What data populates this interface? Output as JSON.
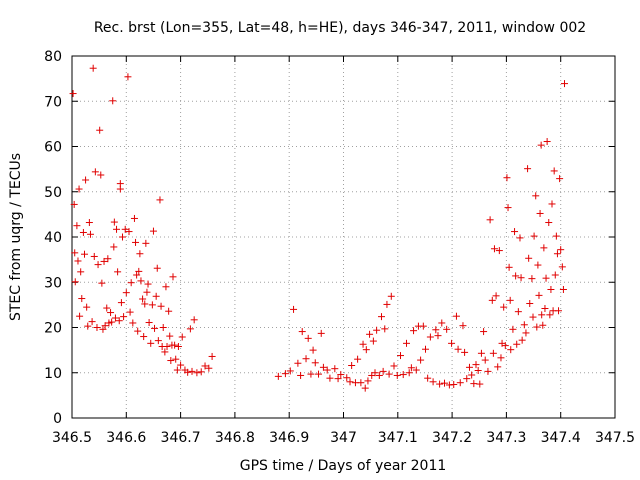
{
  "chart_data": {
    "type": "scatter",
    "title": "Rec. brst (Lon=355, Lat=48, h=HE), days 346-347, 2011, window 002",
    "xlabel": "GPS time / Days of year 2011",
    "ylabel": "STEC from uqrg / TECUs",
    "xlim": [
      346.5,
      347.5
    ],
    "ylim": [
      0,
      80
    ],
    "xticks": [
      346.5,
      346.6,
      346.7,
      346.8,
      346.9,
      347.0,
      347.1,
      347.2,
      347.3,
      347.4,
      347.5
    ],
    "xtick_labels": [
      "346.5",
      "346.6",
      "346.7",
      "346.8",
      "346.9",
      "347",
      "347.1",
      "347.2",
      "347.3",
      "347.4",
      "347.5"
    ],
    "yticks": [
      0,
      10,
      20,
      30,
      40,
      50,
      60,
      70,
      80
    ],
    "ytick_labels": [
      "0",
      "10",
      "20",
      "30",
      "40",
      "50",
      "60",
      "70",
      "80"
    ],
    "grid": true,
    "marker": "+",
    "color": "#e00000",
    "points": [
      [
        346.502,
        71.7
      ],
      [
        346.504,
        47.2
      ],
      [
        346.505,
        36.5
      ],
      [
        346.506,
        30.1
      ],
      [
        346.509,
        42.5
      ],
      [
        346.511,
        34.7
      ],
      [
        346.513,
        50.6
      ],
      [
        346.514,
        22.5
      ],
      [
        346.516,
        32.3
      ],
      [
        346.518,
        26.4
      ],
      [
        346.521,
        41.0
      ],
      [
        346.523,
        36.2
      ],
      [
        346.525,
        52.6
      ],
      [
        346.527,
        24.5
      ],
      [
        346.529,
        20.3
      ],
      [
        346.532,
        43.2
      ],
      [
        346.534,
        40.6
      ],
      [
        346.537,
        21.3
      ],
      [
        346.539,
        77.3
      ],
      [
        346.541,
        35.7
      ],
      [
        346.543,
        54.4
      ],
      [
        346.546,
        20.0
      ],
      [
        346.548,
        33.9
      ],
      [
        346.551,
        63.6
      ],
      [
        346.553,
        53.7
      ],
      [
        346.555,
        29.8
      ],
      [
        346.557,
        19.6
      ],
      [
        346.559,
        34.6
      ],
      [
        346.561,
        20.4
      ],
      [
        346.564,
        24.3
      ],
      [
        346.566,
        35.2
      ],
      [
        346.568,
        21.0
      ],
      [
        346.571,
        23.3
      ],
      [
        346.573,
        21.2
      ],
      [
        346.575,
        70.1
      ],
      [
        346.577,
        37.8
      ],
      [
        346.578,
        43.3
      ],
      [
        346.58,
        22.1
      ],
      [
        346.582,
        41.7
      ],
      [
        346.584,
        32.3
      ],
      [
        346.587,
        21.5
      ],
      [
        346.589,
        50.6
      ],
      [
        346.589,
        51.8
      ],
      [
        346.591,
        25.5
      ],
      [
        346.593,
        40.0
      ],
      [
        346.595,
        22.4
      ],
      [
        346.598,
        41.7
      ],
      [
        346.6,
        27.7
      ],
      [
        346.603,
        75.4
      ],
      [
        346.605,
        41.2
      ],
      [
        346.607,
        23.4
      ],
      [
        346.609,
        29.9
      ],
      [
        346.612,
        21.0
      ],
      [
        346.615,
        44.1
      ],
      [
        346.617,
        38.8
      ],
      [
        346.619,
        31.6
      ],
      [
        346.621,
        19.2
      ],
      [
        346.623,
        32.4
      ],
      [
        346.625,
        36.3
      ],
      [
        346.627,
        30.3
      ],
      [
        346.63,
        26.3
      ],
      [
        346.632,
        18.0
      ],
      [
        346.634,
        25.2
      ],
      [
        346.636,
        38.6
      ],
      [
        346.638,
        27.8
      ],
      [
        346.64,
        29.6
      ],
      [
        346.642,
        21.1
      ],
      [
        346.645,
        16.5
      ],
      [
        346.648,
        25.0
      ],
      [
        346.65,
        41.3
      ],
      [
        346.652,
        19.8
      ],
      [
        346.655,
        26.9
      ],
      [
        346.657,
        33.1
      ],
      [
        346.659,
        17.1
      ],
      [
        346.662,
        48.2
      ],
      [
        346.664,
        24.7
      ],
      [
        346.666,
        15.8
      ],
      [
        346.668,
        20.0
      ],
      [
        346.671,
        14.6
      ],
      [
        346.673,
        29.0
      ],
      [
        346.675,
        15.8
      ],
      [
        346.678,
        23.6
      ],
      [
        346.68,
        18.1
      ],
      [
        346.682,
        12.7
      ],
      [
        346.684,
        16.1
      ],
      [
        346.686,
        31.2
      ],
      [
        346.689,
        16.1
      ],
      [
        346.691,
        13.0
      ],
      [
        346.694,
        10.6
      ],
      [
        346.696,
        15.8
      ],
      [
        346.7,
        11.7
      ],
      [
        346.703,
        17.9
      ],
      [
        346.708,
        10.6
      ],
      [
        346.713,
        10.1
      ],
      [
        346.718,
        19.7
      ],
      [
        346.721,
        10.3
      ],
      [
        346.725,
        21.7
      ],
      [
        346.73,
        10.0
      ],
      [
        346.738,
        10.2
      ],
      [
        346.745,
        11.5
      ],
      [
        346.752,
        11.0
      ],
      [
        346.758,
        13.6
      ],
      [
        346.88,
        9.2
      ],
      [
        346.893,
        9.8
      ],
      [
        346.902,
        10.4
      ],
      [
        346.908,
        24.0
      ],
      [
        346.916,
        12.1
      ],
      [
        346.921,
        9.4
      ],
      [
        346.924,
        19.1
      ],
      [
        346.931,
        13.1
      ],
      [
        346.935,
        17.6
      ],
      [
        346.94,
        9.7
      ],
      [
        346.944,
        15.0
      ],
      [
        346.948,
        12.2
      ],
      [
        346.954,
        9.7
      ],
      [
        346.959,
        18.7
      ],
      [
        346.963,
        11.2
      ],
      [
        346.97,
        10.6
      ],
      [
        346.975,
        8.8
      ],
      [
        346.984,
        10.9
      ],
      [
        346.99,
        8.7
      ],
      [
        346.995,
        9.6
      ],
      [
        347.006,
        8.9
      ],
      [
        347.012,
        8.0
      ],
      [
        347.015,
        11.6
      ],
      [
        347.022,
        7.8
      ],
      [
        347.026,
        13.0
      ],
      [
        347.032,
        7.8
      ],
      [
        347.036,
        16.3
      ],
      [
        347.04,
        6.6
      ],
      [
        347.042,
        15.1
      ],
      [
        347.045,
        8.2
      ],
      [
        347.048,
        18.5
      ],
      [
        347.052,
        9.4
      ],
      [
        347.055,
        17.0
      ],
      [
        347.058,
        10.0
      ],
      [
        347.061,
        19.4
      ],
      [
        347.066,
        9.4
      ],
      [
        347.07,
        22.4
      ],
      [
        347.073,
        10.3
      ],
      [
        347.076,
        19.7
      ],
      [
        347.08,
        25.1
      ],
      [
        347.084,
        9.7
      ],
      [
        347.088,
        26.9
      ],
      [
        347.093,
        11.5
      ],
      [
        347.099,
        9.4
      ],
      [
        347.105,
        13.8
      ],
      [
        347.11,
        9.6
      ],
      [
        347.116,
        16.5
      ],
      [
        347.121,
        10.0
      ],
      [
        347.125,
        11.1
      ],
      [
        347.129,
        19.3
      ],
      [
        347.134,
        10.6
      ],
      [
        347.138,
        20.3
      ],
      [
        347.142,
        12.8
      ],
      [
        347.147,
        20.3
      ],
      [
        347.151,
        15.2
      ],
      [
        347.155,
        8.8
      ],
      [
        347.16,
        17.9
      ],
      [
        347.165,
        8.0
      ],
      [
        347.17,
        19.5
      ],
      [
        347.174,
        18.2
      ],
      [
        347.177,
        7.5
      ],
      [
        347.181,
        21.0
      ],
      [
        347.186,
        7.7
      ],
      [
        347.19,
        19.6
      ],
      [
        347.195,
        7.3
      ],
      [
        347.199,
        16.5
      ],
      [
        347.203,
        7.4
      ],
      [
        347.208,
        22.5
      ],
      [
        347.211,
        15.2
      ],
      [
        347.215,
        7.8
      ],
      [
        347.22,
        20.4
      ],
      [
        347.223,
        14.5
      ],
      [
        347.227,
        8.7
      ],
      [
        347.232,
        11.2
      ],
      [
        347.236,
        9.5
      ],
      [
        347.24,
        7.6
      ],
      [
        347.244,
        11.8
      ],
      [
        347.248,
        10.5
      ],
      [
        347.251,
        7.5
      ],
      [
        347.254,
        14.3
      ],
      [
        347.258,
        19.1
      ],
      [
        347.261,
        12.8
      ],
      [
        347.266,
        10.3
      ],
      [
        347.27,
        43.8
      ],
      [
        347.274,
        26.0
      ],
      [
        347.276,
        14.3
      ],
      [
        347.278,
        37.4
      ],
      [
        347.281,
        27.0
      ],
      [
        347.284,
        11.3
      ],
      [
        347.287,
        37.0
      ],
      [
        347.29,
        13.3
      ],
      [
        347.292,
        16.5
      ],
      [
        347.295,
        24.5
      ],
      [
        347.298,
        16.0
      ],
      [
        347.301,
        53.1
      ],
      [
        347.303,
        46.5
      ],
      [
        347.305,
        33.3
      ],
      [
        347.307,
        26.0
      ],
      [
        347.308,
        15.1
      ],
      [
        347.312,
        19.6
      ],
      [
        347.315,
        41.2
      ],
      [
        347.317,
        31.4
      ],
      [
        347.319,
        16.3
      ],
      [
        347.322,
        23.5
      ],
      [
        347.325,
        39.8
      ],
      [
        347.327,
        31.0
      ],
      [
        347.329,
        17.2
      ],
      [
        347.333,
        20.6
      ],
      [
        347.336,
        18.8
      ],
      [
        347.339,
        55.1
      ],
      [
        347.341,
        35.3
      ],
      [
        347.343,
        25.3
      ],
      [
        347.347,
        30.8
      ],
      [
        347.349,
        22.3
      ],
      [
        347.351,
        40.2
      ],
      [
        347.354,
        49.1
      ],
      [
        347.356,
        20.1
      ],
      [
        347.358,
        33.8
      ],
      [
        347.36,
        27.1
      ],
      [
        347.362,
        45.2
      ],
      [
        347.364,
        60.3
      ],
      [
        347.365,
        22.8
      ],
      [
        347.367,
        20.5
      ],
      [
        347.369,
        37.6
      ],
      [
        347.371,
        24.2
      ],
      [
        347.373,
        30.9
      ],
      [
        347.375,
        61.1
      ],
      [
        347.378,
        43.2
      ],
      [
        347.38,
        22.8
      ],
      [
        347.382,
        28.4
      ],
      [
        347.384,
        47.3
      ],
      [
        347.386,
        23.7
      ],
      [
        347.388,
        54.6
      ],
      [
        347.39,
        31.6
      ],
      [
        347.392,
        40.2
      ],
      [
        347.394,
        36.3
      ],
      [
        347.396,
        23.7
      ],
      [
        347.398,
        52.9
      ],
      [
        347.4,
        37.2
      ],
      [
        347.403,
        33.4
      ],
      [
        347.405,
        28.4
      ],
      [
        347.407,
        73.9
      ]
    ]
  }
}
